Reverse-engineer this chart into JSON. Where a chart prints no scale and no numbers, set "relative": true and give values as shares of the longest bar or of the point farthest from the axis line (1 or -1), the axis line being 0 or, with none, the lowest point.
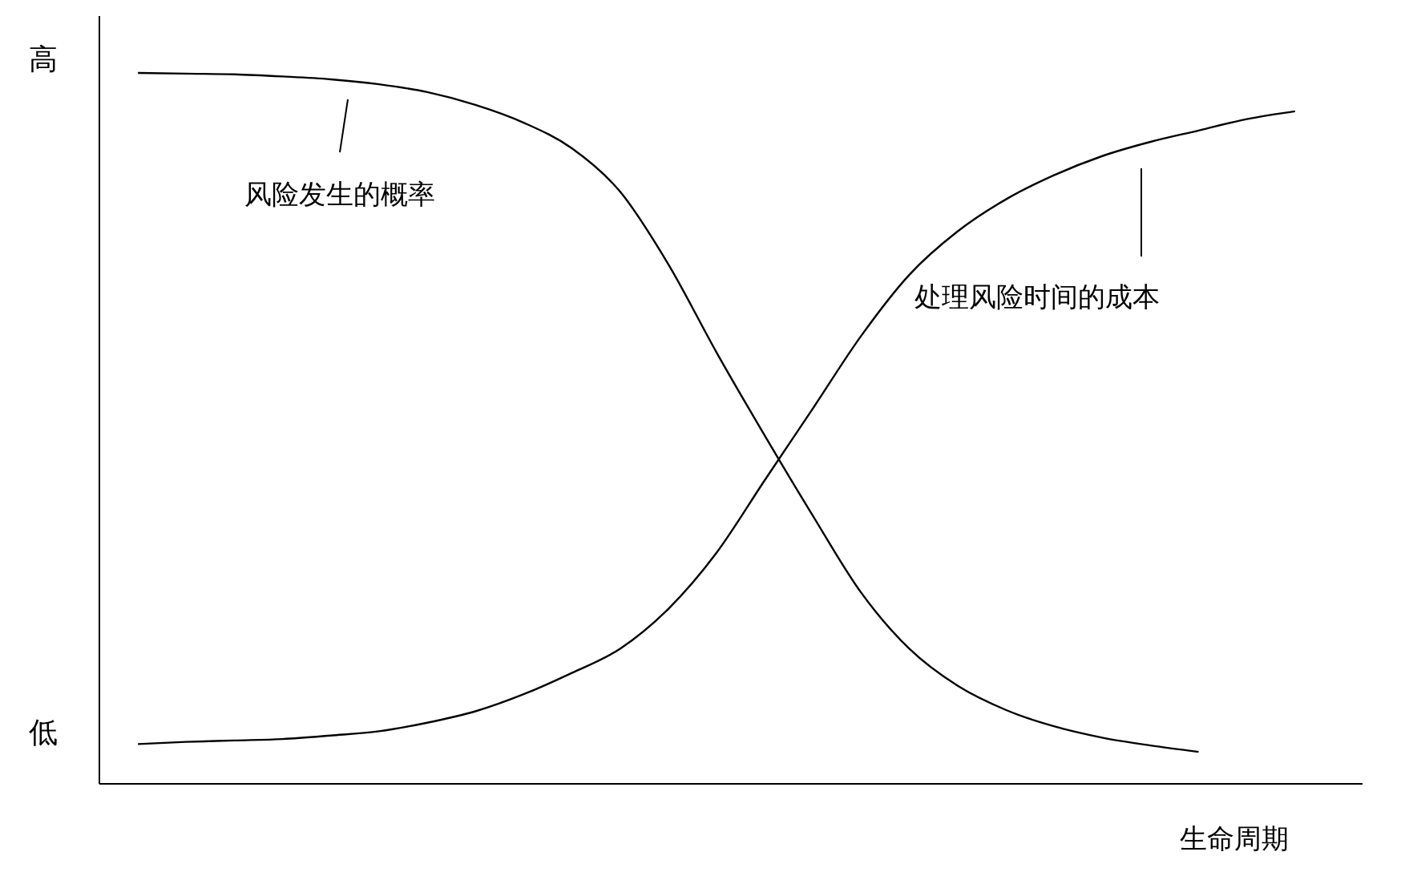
{
  "chart_data": {
    "type": "line",
    "relative": true,
    "xlabel": "生命周期",
    "annotations": [
      "高",
      "低"
    ],
    "categories": [
      null,
      null,
      null,
      null,
      null,
      null,
      null,
      null,
      null,
      null,
      null,
      null,
      null,
      null,
      null,
      null,
      null,
      null,
      null,
      null,
      null,
      null,
      null,
      null,
      null
    ],
    "series": [
      {
        "name": "风险发生的概率",
        "color": "#000000",
        "values": [
          1.0,
          0.999,
          0.998,
          0.995,
          0.991,
          0.984,
          0.973,
          0.955,
          0.93,
          0.894,
          0.833,
          0.731,
          0.607,
          0.49,
          0.377,
          0.269,
          0.19,
          0.138,
          0.104,
          0.081,
          0.065,
          0.054,
          0.045,
          null,
          null
        ]
      },
      {
        "name": "处理风险时间的成本",
        "color": "#000000",
        "values": [
          0.056,
          0.059,
          0.061,
          0.063,
          0.068,
          0.074,
          0.086,
          0.102,
          0.126,
          0.156,
          0.19,
          0.246,
          0.325,
          0.427,
          0.528,
          0.63,
          0.716,
          0.777,
          0.822,
          0.856,
          0.883,
          0.903,
          0.919,
          0.935,
          0.946
        ]
      }
    ]
  }
}
